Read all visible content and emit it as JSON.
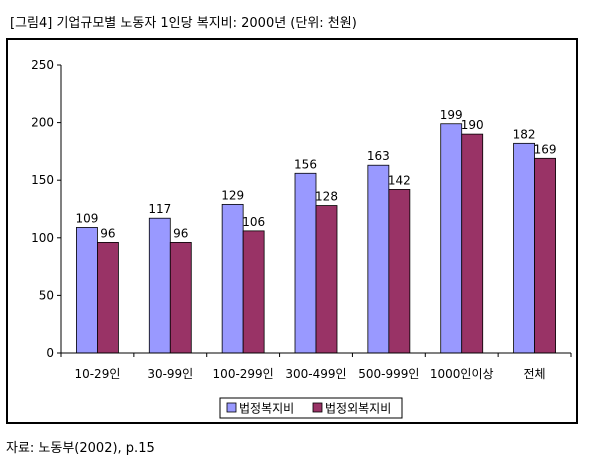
{
  "title": "[그림4] 기업규모별 노동자 1인당 복지비: 2000년 (단위: 천원)",
  "source": "자료: 노동부(2002), p.15",
  "chart_data": {
    "type": "bar",
    "categories": [
      "10-29인",
      "30-99인",
      "100-299인",
      "300-499인",
      "500-999인",
      "1000인이상",
      "전체"
    ],
    "series": [
      {
        "name": "법정복지비",
        "values": [
          109,
          117,
          129,
          156,
          163,
          199,
          182
        ],
        "color": "#9999ff"
      },
      {
        "name": "법정외복지비",
        "values": [
          96,
          96,
          106,
          128,
          142,
          190,
          169
        ],
        "color": "#993366"
      }
    ],
    "ylim": [
      0,
      250
    ],
    "yticks": [
      0,
      50,
      100,
      150,
      200,
      250
    ],
    "grid": false,
    "legend": "bottom",
    "plot_background": "#ffffff"
  }
}
